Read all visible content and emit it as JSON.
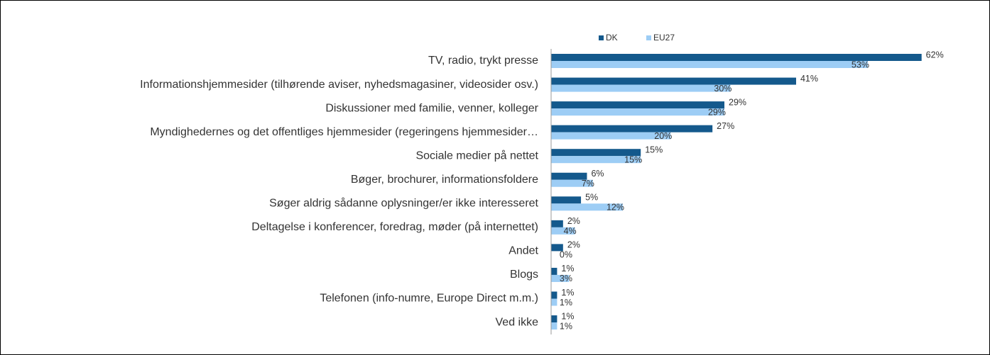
{
  "chart_data": {
    "type": "hbar",
    "categories": [
      "TV, radio, trykt presse",
      "Informationshjemmesider (tilhørende aviser, nyhedsmagasiner, videosider osv.)",
      "Diskussioner med familie, venner, kolleger",
      "Myndighedernes og det offentliges hjemmesider (regeringens hjemmesider…",
      "Sociale medier på nettet",
      "Bøger, brochurer, informationsfoldere",
      "Søger aldrig sådanne oplysninger/er ikke interesseret",
      "Deltagelse i konferencer, foredrag, møder (på internettet)",
      "Andet",
      "Blogs",
      "Telefonen (info-numre, Europe Direct m.m.)",
      "Ved ikke"
    ],
    "series": [
      {
        "name": "DK",
        "color": "#14598c",
        "values": [
          62,
          41,
          29,
          27,
          15,
          6,
          5,
          2,
          2,
          1,
          1,
          1
        ],
        "value_labels": [
          "62%",
          "41%",
          "29%",
          "27%",
          "15%",
          "6%",
          "5%",
          "2%",
          "2%",
          "1%",
          "1%",
          "1%"
        ]
      },
      {
        "name": "EU27",
        "color": "#9dcdf5",
        "values": [
          53,
          30,
          29,
          20,
          15,
          7,
          12,
          4,
          0,
          3,
          1,
          1
        ],
        "value_labels": [
          "53%",
          "30%",
          "29%",
          "20%",
          "15%",
          "7%",
          "12%",
          "4%",
          "0%",
          "3%",
          "1%",
          "1%"
        ]
      }
    ],
    "xlim": [
      0,
      70
    ],
    "legend": "top"
  }
}
